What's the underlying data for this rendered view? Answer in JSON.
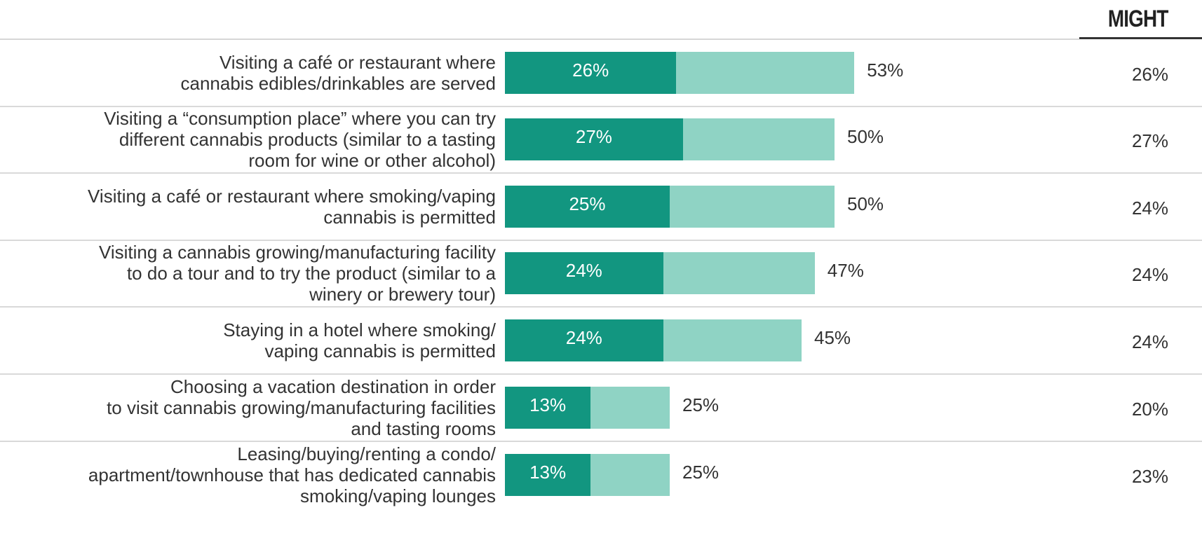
{
  "column_header": "MIGHT",
  "colors": {
    "dark": "#129680",
    "light": "#8fd3c4",
    "rule": "#d9d9d9"
  },
  "chart_data": {
    "type": "bar",
    "orientation": "horizontal",
    "stacked_overlay": true,
    "categories": [
      [
        "Visiting a café or restaurant where",
        "cannabis edibles/drinkables are served"
      ],
      [
        "Visiting a “consumption place” where you can try",
        "different cannabis products (similar to a tasting",
        "room for wine or other alcohol)"
      ],
      [
        "Visiting a café or restaurant where smoking/vaping",
        "cannabis is permitted"
      ],
      [
        "Visiting a cannabis growing/manufacturing facility",
        "to do a tour and to try the product (similar to a",
        "winery or brewery tour)"
      ],
      [
        "Staying in a hotel where smoking/",
        "vaping cannabis is permitted"
      ],
      [
        "Choosing a vacation destination in order",
        "to visit cannabis growing/manufacturing facilities",
        "and tasting rooms"
      ],
      [
        "Leasing/buying/renting a condo/",
        "apartment/townhouse that has dedicated cannabis",
        "smoking/vaping lounges"
      ]
    ],
    "series": [
      {
        "values": [
          26,
          27,
          25,
          24,
          24,
          13,
          13
        ],
        "labels": [
          "26%",
          "27%",
          "25%",
          "24%",
          "24%",
          "13%",
          "13%"
        ]
      },
      {
        "values": [
          53,
          50,
          50,
          47,
          45,
          25,
          25
        ],
        "labels": [
          "53%",
          "50%",
          "50%",
          "47%",
          "45%",
          "25%",
          "25%"
        ]
      }
    ],
    "might": {
      "values": [
        26,
        27,
        24,
        24,
        24,
        20,
        23
      ],
      "labels": [
        "26%",
        "27%",
        "24%",
        "24%",
        "24%",
        "20%",
        "23%"
      ]
    },
    "xlim": [
      0,
      53
    ]
  }
}
